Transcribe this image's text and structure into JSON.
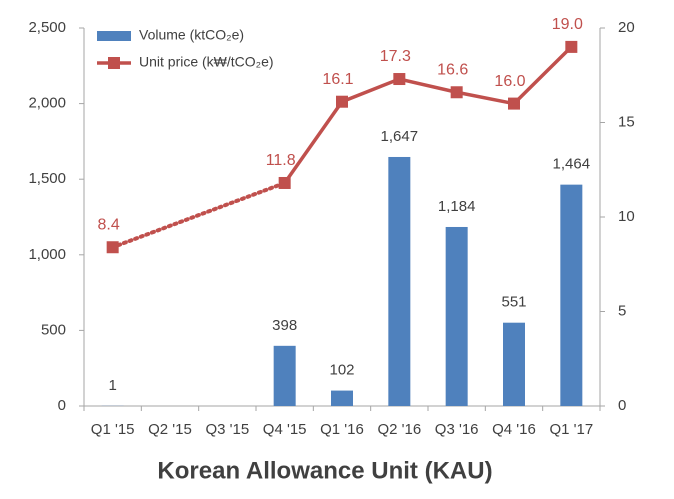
{
  "chart_data": {
    "type": "bar-line",
    "title": "Korean Allowance Unit (KAU)",
    "categories": [
      "Q1 '15",
      "Q2 '15",
      "Q3 '15",
      "Q4 '15",
      "Q1 '16",
      "Q2 '16",
      "Q3 '16",
      "Q4 '16",
      "Q1 '17"
    ],
    "series": [
      {
        "name": "Volume (ktCO₂e)",
        "type": "bar",
        "color": "#4f81bd",
        "values": [
          1,
          null,
          null,
          398,
          102,
          1647,
          1184,
          551,
          1464
        ],
        "value_labels": [
          "1",
          null,
          null,
          "398",
          "102",
          "1,647",
          "1,184",
          "551",
          "1,464"
        ]
      },
      {
        "name": "Unit price (k₩/tCO₂e)",
        "type": "line",
        "axis": "y2",
        "color": "#c0504d",
        "values": [
          8.4,
          null,
          null,
          11.8,
          16.1,
          17.3,
          16.6,
          16.0,
          19.0
        ],
        "value_labels": [
          "8.4",
          null,
          null,
          "11.8",
          "16.1",
          "17.3",
          "16.6",
          "16.0",
          "19.0"
        ]
      }
    ],
    "ylim": [
      0,
      2500
    ],
    "yticks": [
      0,
      500,
      {
        "value": 1000,
        "label": "1,000"
      },
      {
        "value": 1500,
        "label": "1,500"
      },
      {
        "value": 2000,
        "label": "2,000"
      },
      {
        "value": 2500,
        "label": "2,500"
      }
    ],
    "y2lim": [
      0,
      20
    ],
    "y2ticks": [
      0,
      5,
      10,
      15,
      20
    ],
    "grid": false,
    "legend": "top-left"
  }
}
